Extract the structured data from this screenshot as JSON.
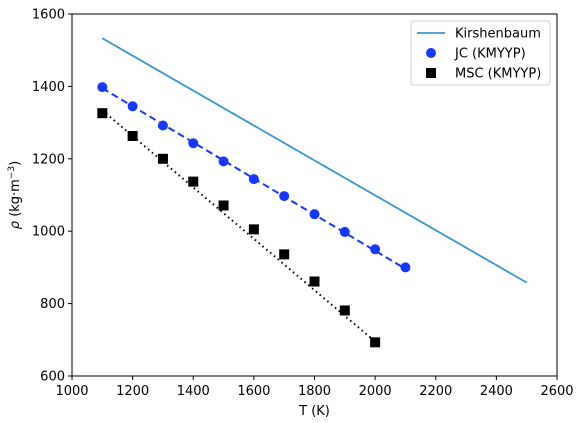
{
  "chart_data": {
    "type": "line",
    "xlabel": "T (K)",
    "ylabel_parts": {
      "rho": "ρ",
      "unit_prefix": " (kg·m",
      "exponent": "−3",
      "unit_suffix": ")"
    },
    "xlim": [
      1000,
      2600
    ],
    "ylim": [
      600,
      1600
    ],
    "xticks": [
      "1000",
      "1200",
      "1400",
      "1600",
      "1800",
      "2000",
      "2200",
      "2400",
      "2600"
    ],
    "yticks": [
      "600",
      "800",
      "1000",
      "1200",
      "1400",
      "1600"
    ],
    "legend_position": "top-right",
    "series": [
      {
        "name": "Kirshenbaum",
        "style": "line",
        "color": "#3b96c9",
        "x": [
          1100,
          2500
        ],
        "y": [
          1533,
          858
        ]
      },
      {
        "name": "JC (KMYYP)",
        "style": "markers-circle",
        "color": "#1637ff",
        "x": [
          1100,
          1200,
          1300,
          1400,
          1500,
          1600,
          1700,
          1800,
          1900,
          2000,
          2100
        ],
        "y": [
          1398,
          1345,
          1292,
          1243,
          1193,
          1144,
          1097,
          1047,
          998,
          950,
          900
        ]
      },
      {
        "name": "MSC (KMYYP)",
        "style": "markers-square",
        "color": "#000000",
        "x": [
          1100,
          1200,
          1300,
          1400,
          1500,
          1600,
          1700,
          1800,
          1900,
          2000
        ],
        "y": [
          1326,
          1263,
          1200,
          1137,
          1071,
          1005,
          936,
          861,
          781,
          693
        ]
      }
    ],
    "fits": [
      {
        "of": "JC (KMYYP)",
        "style": "dashed",
        "color": "#1637ff",
        "x": [
          1100,
          2100
        ],
        "y": [
          1395,
          896
        ]
      },
      {
        "of": "MSC (KMYYP)",
        "style": "dotted",
        "color": "#000000",
        "x": [
          1100,
          2000
        ],
        "y": [
          1334,
          695
        ]
      }
    ]
  }
}
